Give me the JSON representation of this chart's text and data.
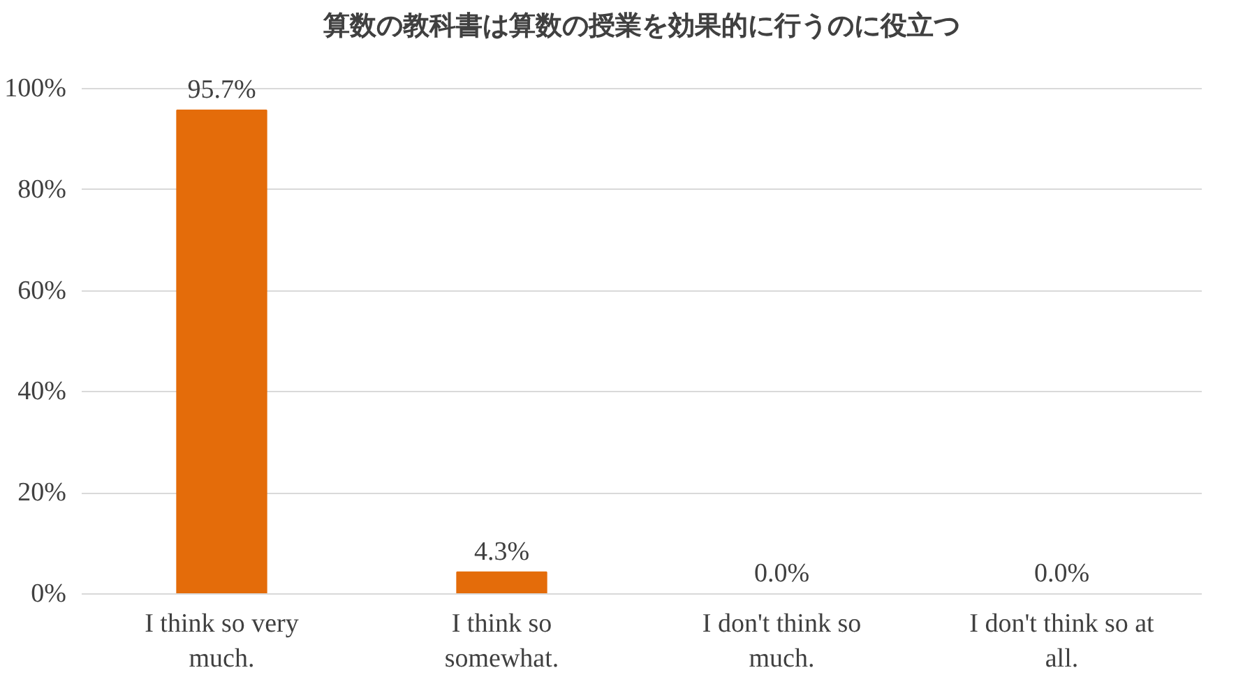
{
  "chart_data": {
    "type": "bar",
    "title": "算数の教科書は算数の授業を効果的に行うのに役立つ",
    "categories": [
      "I think so very\nmuch.",
      "I think so\nsomewhat.",
      "I don't think so\nmuch.",
      "I don't think so at\nall."
    ],
    "values": [
      95.7,
      4.3,
      0.0,
      0.0
    ],
    "color": "#e46c0a",
    "value_labels": [
      "95.7%",
      "4.3%",
      "0.0%",
      "0.0%"
    ],
    "ylim": [
      0,
      100
    ],
    "yticks": [
      {
        "value": 0,
        "label": "0%"
      },
      {
        "value": 20,
        "label": "20%"
      },
      {
        "value": 40,
        "label": "40%"
      },
      {
        "value": 60,
        "label": "60%"
      },
      {
        "value": 80,
        "label": "80%"
      },
      {
        "value": 100,
        "label": "100%"
      }
    ],
    "grid": "y"
  }
}
